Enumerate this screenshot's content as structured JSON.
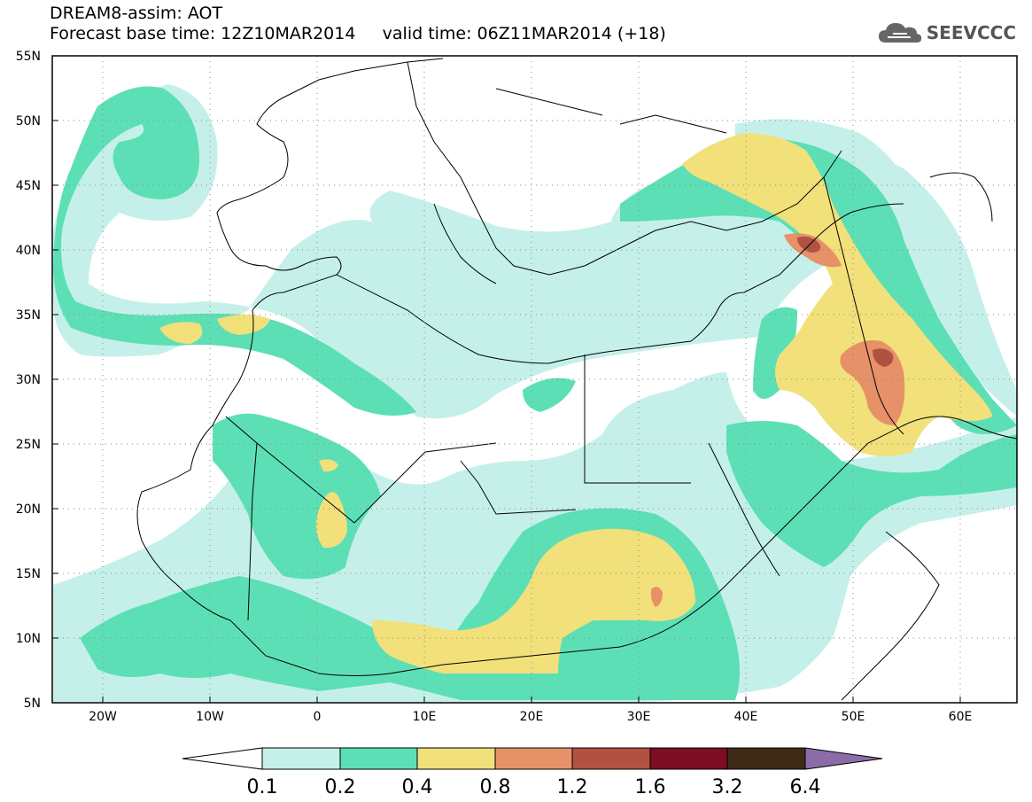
{
  "header": {
    "line1": "DREAM8-assim: AOT",
    "line2": "Forecast base time: 12Z10MAR2014     valid time: 06Z11MAR2014 (+18)"
  },
  "logo": {
    "text": "SEEVCCC",
    "icon": "cloud-icon"
  },
  "axes": {
    "lat_labels": [
      "55N",
      "50N",
      "45N",
      "40N",
      "35N",
      "30N",
      "25N",
      "20N",
      "15N",
      "10N",
      "5N"
    ],
    "lon_labels": [
      "20W",
      "10W",
      "0",
      "10E",
      "20E",
      "30E",
      "40E",
      "50E",
      "60E"
    ],
    "lat_range": [
      5,
      55
    ],
    "lon_range": [
      -25,
      65
    ]
  },
  "colorbar": {
    "levels": [
      "0.1",
      "0.2",
      "0.4",
      "0.8",
      "1.2",
      "1.6",
      "3.2",
      "6.4"
    ],
    "colors": [
      "#ffffff",
      "#c5f0ea",
      "#5ddfb6",
      "#f2e07a",
      "#e69168",
      "#b15141",
      "#7d0d24",
      "#3f2a16",
      "#8c6ca8"
    ]
  }
}
